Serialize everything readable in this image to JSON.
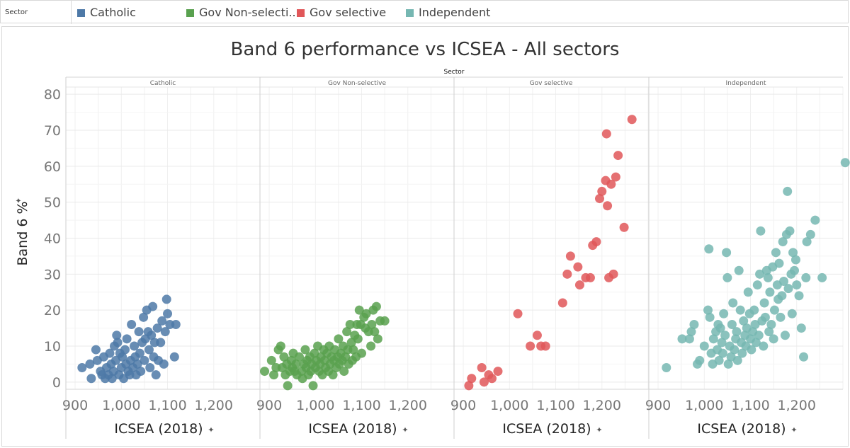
{
  "legend": {
    "title": "Sector",
    "items": [
      {
        "label": "Catholic",
        "color": "#4e79a7"
      },
      {
        "label": "Gov Non-selecti..",
        "color": "#59a14f"
      },
      {
        "label": "Gov selective",
        "color": "#e15759"
      },
      {
        "label": "Independent",
        "color": "#76b7b2"
      }
    ]
  },
  "chart_data": {
    "type": "scatter",
    "title": "Band 6 performance vs ICSEA - All sectors",
    "column_header": "Sector",
    "xlabel": "ICSEA (2018)",
    "ylabel": "Band 6 %",
    "xlim": [
      880,
      1300
    ],
    "ylim": [
      -2,
      82
    ],
    "x_ticks": [
      {
        "v": 900,
        "label": "900"
      },
      {
        "v": 1000,
        "label": "1,000"
      },
      {
        "v": 1100,
        "label": "1,100"
      },
      {
        "v": 1200,
        "label": "1,200"
      }
    ],
    "y_ticks": [
      {
        "v": 0,
        "label": "0"
      },
      {
        "v": 10,
        "label": "10"
      },
      {
        "v": 20,
        "label": "20"
      },
      {
        "v": 30,
        "label": "30"
      },
      {
        "v": 40,
        "label": "40"
      },
      {
        "v": 50,
        "label": "50"
      },
      {
        "v": 60,
        "label": "60"
      },
      {
        "v": 70,
        "label": "70"
      },
      {
        "v": 80,
        "label": "80"
      }
    ],
    "series": [
      {
        "name": "Catholic",
        "color": "#4e79a7",
        "points": [
          [
            915,
            4
          ],
          [
            935,
            1
          ],
          [
            932,
            5
          ],
          [
            945,
            9
          ],
          [
            948,
            6
          ],
          [
            955,
            3
          ],
          [
            958,
            2
          ],
          [
            962,
            7
          ],
          [
            965,
            1
          ],
          [
            968,
            4
          ],
          [
            972,
            2
          ],
          [
            975,
            8
          ],
          [
            978,
            5
          ],
          [
            980,
            1
          ],
          [
            983,
            3
          ],
          [
            985,
            10
          ],
          [
            988,
            6
          ],
          [
            990,
            13
          ],
          [
            992,
            11
          ],
          [
            995,
            2
          ],
          [
            997,
            8
          ],
          [
            1000,
            4
          ],
          [
            1002,
            7
          ],
          [
            1005,
            1
          ],
          [
            1008,
            9
          ],
          [
            1010,
            5
          ],
          [
            1012,
            12
          ],
          [
            1015,
            3
          ],
          [
            1018,
            2
          ],
          [
            1020,
            6
          ],
          [
            1022,
            16
          ],
          [
            1025,
            4
          ],
          [
            1028,
            10
          ],
          [
            1030,
            7
          ],
          [
            1032,
            2
          ],
          [
            1035,
            5
          ],
          [
            1038,
            14
          ],
          [
            1040,
            8
          ],
          [
            1042,
            3
          ],
          [
            1045,
            11
          ],
          [
            1048,
            18
          ],
          [
            1050,
            6
          ],
          [
            1052,
            12
          ],
          [
            1055,
            20
          ],
          [
            1058,
            14
          ],
          [
            1060,
            9
          ],
          [
            1062,
            4
          ],
          [
            1065,
            13
          ],
          [
            1068,
            21
          ],
          [
            1070,
            7
          ],
          [
            1072,
            11
          ],
          [
            1075,
            2
          ],
          [
            1078,
            15
          ],
          [
            1080,
            6
          ],
          [
            1085,
            11
          ],
          [
            1088,
            17
          ],
          [
            1092,
            5
          ],
          [
            1095,
            14
          ],
          [
            1098,
            23
          ],
          [
            1100,
            19
          ],
          [
            1105,
            16
          ],
          [
            1115,
            7
          ],
          [
            1118,
            16
          ]
        ]
      },
      {
        "name": "Gov Non-selective",
        "color": "#59a14f",
        "points": [
          [
            890,
            3
          ],
          [
            905,
            6
          ],
          [
            910,
            2
          ],
          [
            915,
            4
          ],
          [
            920,
            9
          ],
          [
            925,
            10
          ],
          [
            928,
            4
          ],
          [
            932,
            7
          ],
          [
            935,
            2
          ],
          [
            938,
            5
          ],
          [
            940,
            -1
          ],
          [
            945,
            3
          ],
          [
            948,
            6
          ],
          [
            950,
            4
          ],
          [
            952,
            8
          ],
          [
            955,
            3
          ],
          [
            958,
            5
          ],
          [
            960,
            2
          ],
          [
            965,
            7
          ],
          [
            970,
            3
          ],
          [
            972,
            1
          ],
          [
            975,
            5
          ],
          [
            978,
            9
          ],
          [
            980,
            4
          ],
          [
            982,
            6
          ],
          [
            985,
            2
          ],
          [
            988,
            7
          ],
          [
            990,
            3
          ],
          [
            992,
            5
          ],
          [
            995,
            -1
          ],
          [
            998,
            8
          ],
          [
            1000,
            4
          ],
          [
            1002,
            6
          ],
          [
            1005,
            10
          ],
          [
            1008,
            3
          ],
          [
            1010,
            5
          ],
          [
            1012,
            7
          ],
          [
            1015,
            2
          ],
          [
            1018,
            9
          ],
          [
            1020,
            6
          ],
          [
            1022,
            4
          ],
          [
            1025,
            8
          ],
          [
            1028,
            3
          ],
          [
            1030,
            10
          ],
          [
            1032,
            5
          ],
          [
            1035,
            7
          ],
          [
            1038,
            2
          ],
          [
            1040,
            6
          ],
          [
            1042,
            9
          ],
          [
            1045,
            4
          ],
          [
            1048,
            7
          ],
          [
            1050,
            12
          ],
          [
            1052,
            5
          ],
          [
            1055,
            8
          ],
          [
            1058,
            6
          ],
          [
            1060,
            10
          ],
          [
            1062,
            3
          ],
          [
            1065,
            7
          ],
          [
            1068,
            14
          ],
          [
            1070,
            9
          ],
          [
            1072,
            5
          ],
          [
            1075,
            16
          ],
          [
            1078,
            11
          ],
          [
            1080,
            6
          ],
          [
            1082,
            9
          ],
          [
            1085,
            13
          ],
          [
            1088,
            7
          ],
          [
            1090,
            16
          ],
          [
            1092,
            12
          ],
          [
            1095,
            20
          ],
          [
            1098,
            16
          ],
          [
            1100,
            8
          ],
          [
            1105,
            18
          ],
          [
            1108,
            15
          ],
          [
            1110,
            19
          ],
          [
            1115,
            14
          ],
          [
            1120,
            10
          ],
          [
            1122,
            16
          ],
          [
            1125,
            20
          ],
          [
            1128,
            14
          ],
          [
            1132,
            21
          ],
          [
            1135,
            12
          ],
          [
            1140,
            17
          ],
          [
            1150,
            17
          ]
        ]
      },
      {
        "name": "Gov selective",
        "color": "#e15759",
        "points": [
          [
            912,
            -1
          ],
          [
            918,
            1
          ],
          [
            940,
            4
          ],
          [
            945,
            0
          ],
          [
            955,
            2
          ],
          [
            962,
            1
          ],
          [
            975,
            3
          ],
          [
            1018,
            19
          ],
          [
            1045,
            10
          ],
          [
            1060,
            13
          ],
          [
            1068,
            10
          ],
          [
            1078,
            10
          ],
          [
            1115,
            22
          ],
          [
            1125,
            30
          ],
          [
            1132,
            35
          ],
          [
            1148,
            32
          ],
          [
            1152,
            27
          ],
          [
            1165,
            29
          ],
          [
            1175,
            29
          ],
          [
            1180,
            38
          ],
          [
            1188,
            39
          ],
          [
            1195,
            51
          ],
          [
            1200,
            53
          ],
          [
            1208,
            56
          ],
          [
            1210,
            69
          ],
          [
            1212,
            49
          ],
          [
            1215,
            29
          ],
          [
            1220,
            55
          ],
          [
            1225,
            30
          ],
          [
            1230,
            57
          ],
          [
            1235,
            63
          ],
          [
            1248,
            43
          ],
          [
            1265,
            73
          ]
        ]
      },
      {
        "name": "Independent",
        "color": "#76b7b2",
        "points": [
          [
            918,
            4
          ],
          [
            952,
            12
          ],
          [
            968,
            12
          ],
          [
            972,
            14
          ],
          [
            978,
            16
          ],
          [
            985,
            5
          ],
          [
            990,
            6
          ],
          [
            1000,
            10
          ],
          [
            1008,
            20
          ],
          [
            1010,
            37
          ],
          [
            1012,
            18
          ],
          [
            1015,
            8
          ],
          [
            1018,
            5
          ],
          [
            1020,
            12
          ],
          [
            1025,
            14
          ],
          [
            1028,
            9
          ],
          [
            1030,
            16
          ],
          [
            1032,
            6
          ],
          [
            1035,
            15
          ],
          [
            1038,
            11
          ],
          [
            1040,
            8
          ],
          [
            1042,
            19
          ],
          [
            1045,
            13
          ],
          [
            1048,
            36
          ],
          [
            1050,
            29
          ],
          [
            1052,
            5
          ],
          [
            1055,
            10
          ],
          [
            1058,
            7
          ],
          [
            1060,
            16
          ],
          [
            1062,
            22
          ],
          [
            1065,
            9
          ],
          [
            1068,
            12
          ],
          [
            1070,
            14
          ],
          [
            1072,
            6
          ],
          [
            1075,
            31
          ],
          [
            1078,
            20
          ],
          [
            1080,
            11
          ],
          [
            1082,
            8
          ],
          [
            1085,
            17
          ],
          [
            1088,
            13
          ],
          [
            1090,
            10
          ],
          [
            1092,
            15
          ],
          [
            1095,
            25
          ],
          [
            1098,
            19
          ],
          [
            1100,
            12
          ],
          [
            1102,
            9
          ],
          [
            1105,
            14
          ],
          [
            1108,
            20
          ],
          [
            1110,
            16
          ],
          [
            1112,
            11
          ],
          [
            1115,
            27
          ],
          [
            1118,
            13
          ],
          [
            1120,
            30
          ],
          [
            1122,
            42
          ],
          [
            1125,
            17
          ],
          [
            1128,
            10
          ],
          [
            1130,
            22
          ],
          [
            1132,
            18
          ],
          [
            1135,
            31
          ],
          [
            1138,
            29
          ],
          [
            1140,
            14
          ],
          [
            1142,
            25
          ],
          [
            1145,
            16
          ],
          [
            1148,
            32
          ],
          [
            1150,
            12
          ],
          [
            1152,
            20
          ],
          [
            1155,
            36
          ],
          [
            1158,
            27
          ],
          [
            1160,
            23
          ],
          [
            1162,
            33
          ],
          [
            1165,
            18
          ],
          [
            1168,
            24
          ],
          [
            1170,
            39
          ],
          [
            1172,
            28
          ],
          [
            1175,
            13
          ],
          [
            1178,
            41
          ],
          [
            1180,
            53
          ],
          [
            1182,
            26
          ],
          [
            1185,
            42
          ],
          [
            1188,
            30
          ],
          [
            1190,
            19
          ],
          [
            1192,
            36
          ],
          [
            1195,
            31
          ],
          [
            1198,
            34
          ],
          [
            1200,
            27
          ],
          [
            1205,
            24
          ],
          [
            1210,
            15
          ],
          [
            1215,
            7
          ],
          [
            1220,
            29
          ],
          [
            1222,
            39
          ],
          [
            1230,
            41
          ],
          [
            1240,
            45
          ],
          [
            1255,
            29
          ],
          [
            1305,
            61
          ]
        ]
      }
    ]
  }
}
